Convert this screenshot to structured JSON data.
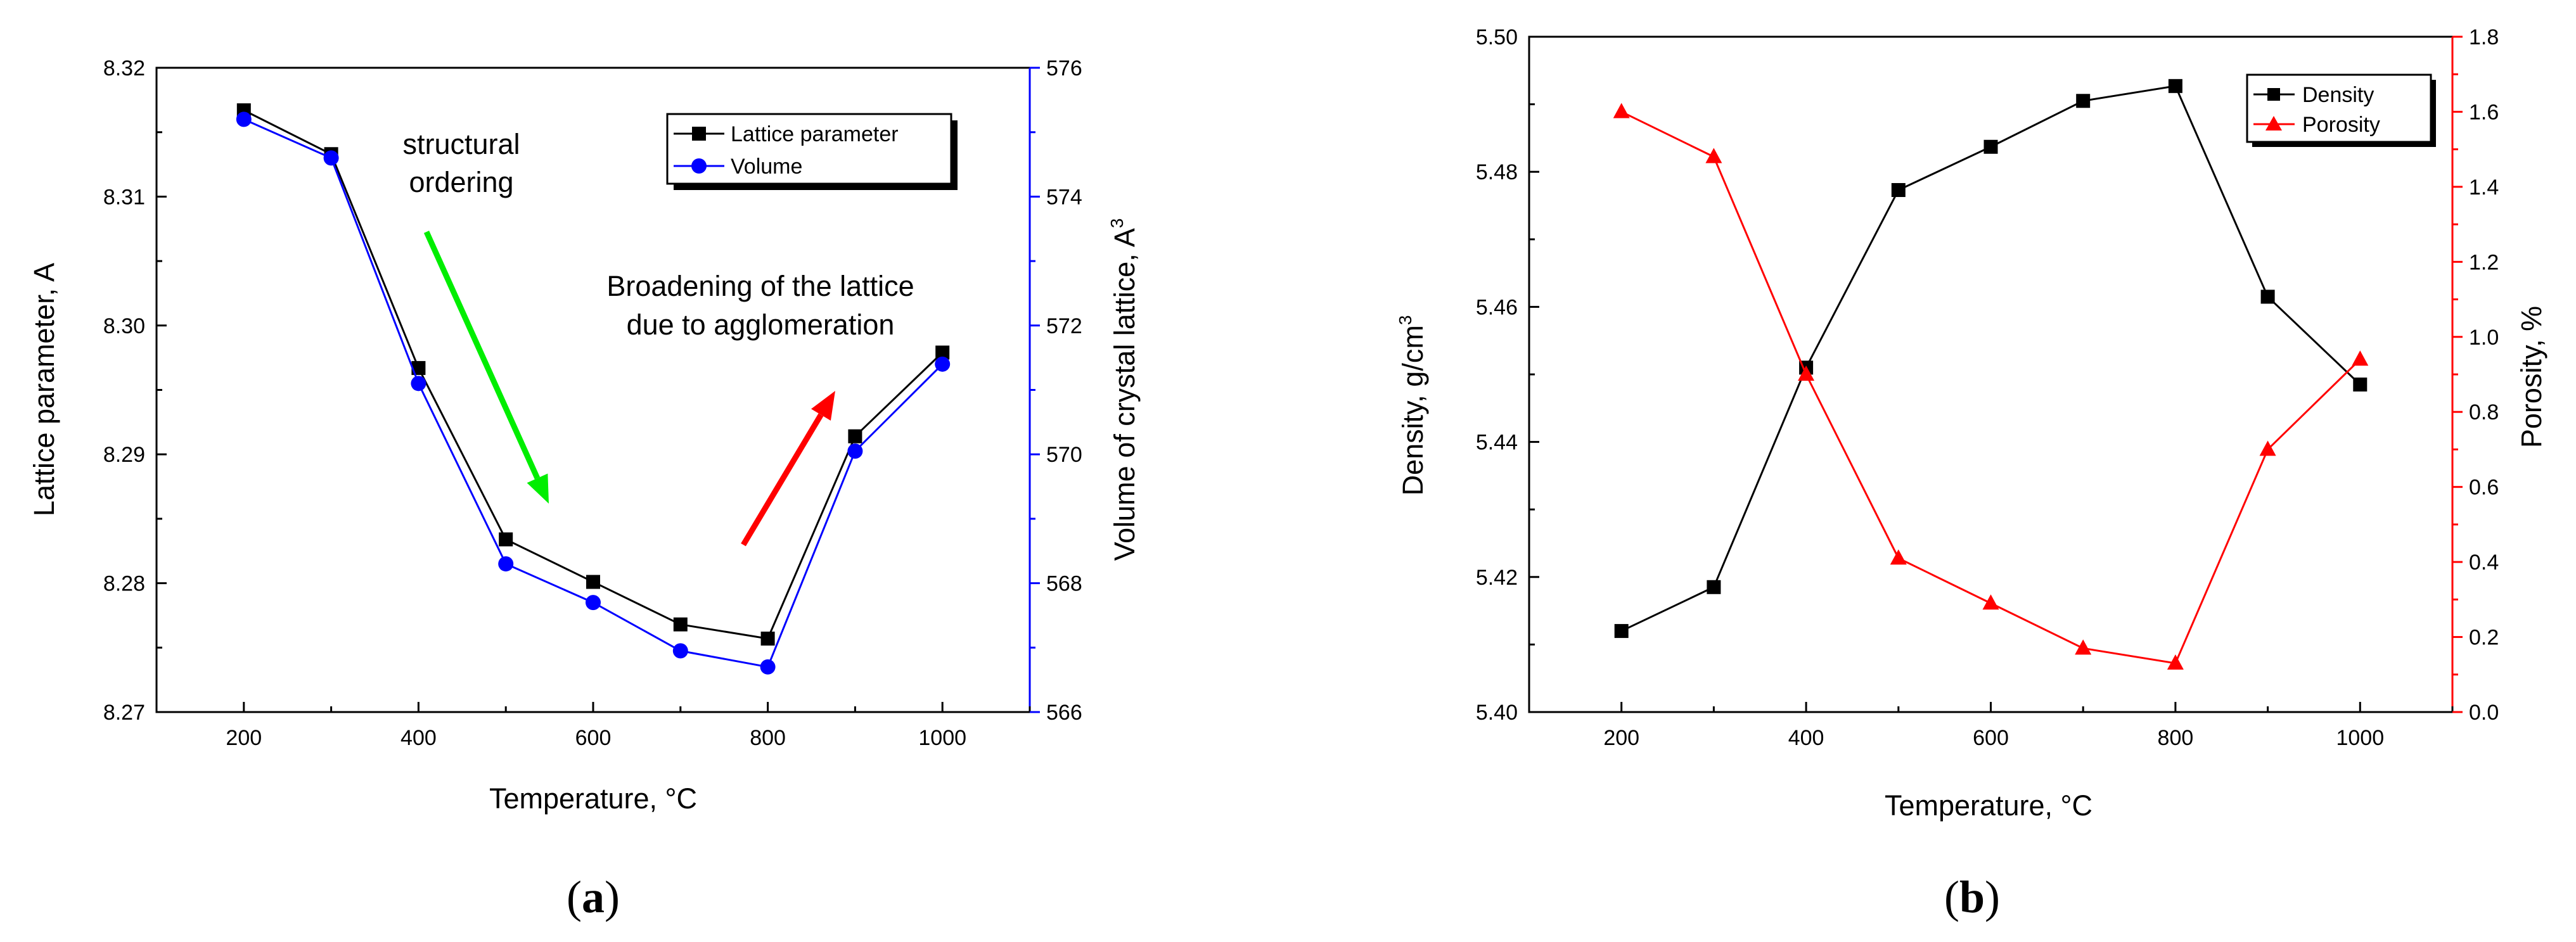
{
  "chart_data": [
    {
      "type": "line",
      "panel_label": "a",
      "xlabel": "Temperature, °C",
      "x": [
        200,
        300,
        400,
        500,
        600,
        700,
        800,
        900,
        1000
      ],
      "xlim": [
        100,
        1100
      ],
      "xticks": [
        200,
        400,
        600,
        800,
        1000
      ],
      "y_left": {
        "label": "Lattice parameter, A",
        "lim": [
          8.27,
          8.32
        ],
        "ticks": [
          "8.27",
          "8.28",
          "8.29",
          "8.30",
          "8.31",
          "8.32"
        ],
        "color": "#000000"
      },
      "y_right": {
        "label": "Volume of crystal lattice, A",
        "label_sup": "3",
        "lim": [
          566,
          576
        ],
        "ticks": [
          "566",
          "568",
          "570",
          "572",
          "574",
          "576"
        ],
        "color": "#0000ff"
      },
      "series": [
        {
          "name": "Lattice parameter",
          "axis": "left",
          "color": "#000000",
          "marker": "square",
          "values": [
            8.3167,
            8.3133,
            8.2967,
            8.2834,
            8.2801,
            8.2768,
            8.2757,
            8.2914,
            8.2979
          ]
        },
        {
          "name": "Volume",
          "axis": "right",
          "color": "#0000ff",
          "marker": "circle",
          "values": [
            575.2,
            574.6,
            571.1,
            568.3,
            567.7,
            566.95,
            566.7,
            570.05,
            571.4
          ]
        }
      ],
      "annotations": {
        "structural_line1": "structural",
        "structural_line2": "ordering",
        "broadening_line1": "Broadening of the lattice",
        "broadening_line2": "due to agglomeration"
      },
      "arrow_colors": {
        "ordering": "#00ee00",
        "broadening": "#ff0000"
      },
      "legend_position": "top-right"
    },
    {
      "type": "line",
      "panel_label": "b",
      "xlabel": "Temperature, °C",
      "x": [
        200,
        300,
        400,
        500,
        600,
        700,
        800,
        900,
        1000
      ],
      "xlim": [
        100,
        1100
      ],
      "xticks": [
        200,
        400,
        600,
        800,
        1000
      ],
      "y_left": {
        "label": "Density, g/cm",
        "label_sup": "3",
        "lim": [
          5.4,
          5.5
        ],
        "ticks": [
          "5.40",
          "5.42",
          "5.44",
          "5.46",
          "5.48",
          "5.50"
        ],
        "color": "#000000"
      },
      "y_right": {
        "label": "Porosity, %",
        "lim": [
          0.0,
          1.8
        ],
        "ticks": [
          "0.0",
          "0.2",
          "0.4",
          "0.6",
          "0.8",
          "1.0",
          "1.2",
          "1.4",
          "1.6",
          "1.8"
        ],
        "color": "#ff0000"
      },
      "series": [
        {
          "name": "Density",
          "axis": "left",
          "color": "#000000",
          "marker": "square",
          "values": [
            5.412,
            5.4185,
            5.451,
            5.4773,
            5.4837,
            5.4905,
            5.4927,
            5.4615,
            5.4485
          ]
        },
        {
          "name": "Porosity",
          "axis": "right",
          "color": "#ff0000",
          "marker": "triangle",
          "values": [
            1.6,
            1.48,
            0.9,
            0.41,
            0.29,
            0.17,
            0.13,
            0.7,
            0.94
          ]
        }
      ],
      "legend_position": "top-right"
    }
  ]
}
